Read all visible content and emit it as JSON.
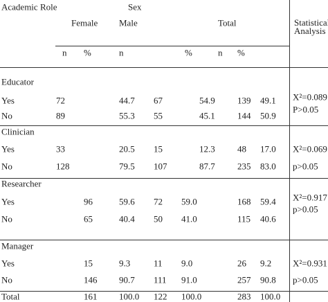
{
  "header": {
    "academic_role": "Academic Role",
    "sex": "Sex",
    "statistical_analysis": "Statistical Analysis",
    "groups": [
      "Female",
      "Male",
      "Total"
    ],
    "subheaders": [
      "n",
      "%",
      "n",
      "%",
      "n",
      "%"
    ]
  },
  "sections": [
    {
      "label": "Educator",
      "rows": [
        {
          "label": "Yes",
          "cells": [
            "72",
            "44.7",
            "67",
            "54.9",
            "139",
            "49.1"
          ]
        },
        {
          "label": "No",
          "cells": [
            "89",
            "55.3",
            "55",
            "45.1",
            "144",
            "50.9"
          ]
        }
      ],
      "stats": [
        "X²=0.089",
        "P>0.05"
      ]
    },
    {
      "label": "Clinician",
      "rows": [
        {
          "label": "Yes",
          "cells": [
            "33",
            "20.5",
            "15",
            "12.3",
            "48",
            "17.0"
          ]
        },
        {
          "label": "No",
          "cells": [
            "128",
            "79.5",
            "107",
            "87.7",
            "235",
            "83.0"
          ]
        }
      ],
      "stats": [
        "X²=0.069",
        "p>0.05"
      ]
    },
    {
      "label": "Researcher",
      "rows": [
        {
          "label": "Yes",
          "cells": [
            "96",
            "59.6",
            "72",
            "59.0",
            "168",
            "59.4"
          ]
        },
        {
          "label": "No",
          "cells": [
            "65",
            "40.4",
            "50",
            "41.0",
            "115",
            "40.6"
          ]
        }
      ],
      "stats": [
        "X²=0.917",
        "p>0.05"
      ]
    },
    {
      "label": "Manager",
      "rows": [
        {
          "label": "Yes",
          "cells": [
            "15",
            "9.3",
            "11",
            "9.0",
            "26",
            "9.2"
          ]
        },
        {
          "label": "No",
          "cells": [
            "146",
            "90.7",
            "111",
            "91.0",
            "257",
            "90.8"
          ]
        }
      ],
      "stats": [
        "X²=0.931",
        "p>0.05"
      ]
    }
  ],
  "total": {
    "label": "Total",
    "cells": [
      "161",
      "100.0",
      "122",
      "100.0",
      "283",
      "100.0"
    ]
  }
}
